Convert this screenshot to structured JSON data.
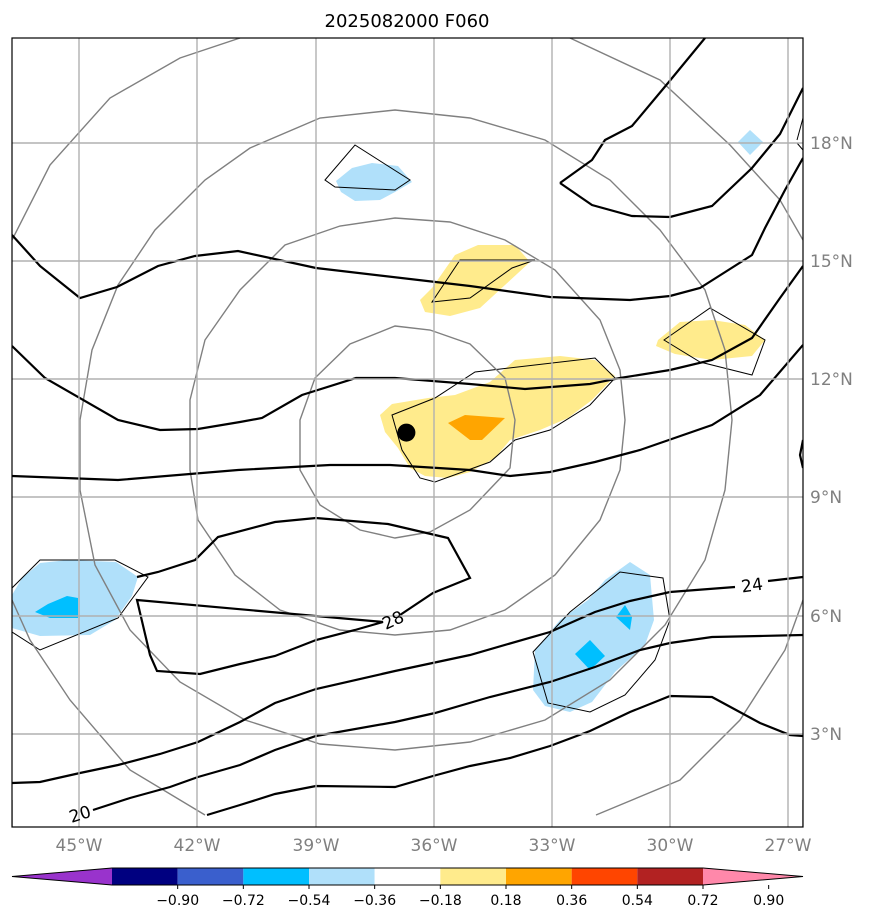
{
  "title": "2025082000 F060",
  "axes": {
    "lon_ticks": [
      "45°W",
      "42°W",
      "39°W",
      "36°W",
      "33°W",
      "30°W",
      "27°W"
    ],
    "lat_ticks": [
      "18°N",
      "15°N",
      "12°N",
      "9°N",
      "6°N",
      "3°N"
    ]
  },
  "contour_labels": {
    "c20": "20",
    "c24": "24",
    "c28": "28"
  },
  "storm_center": {
    "lon": -36.7,
    "lat": 10.65
  },
  "colorbar": {
    "ticks": [
      "−0.90",
      "−0.72",
      "−0.54",
      "−0.36",
      "−0.18",
      "0.18",
      "0.36",
      "0.54",
      "0.72",
      "0.90"
    ],
    "colors": [
      "#9933cc",
      "#000080",
      "#3a5fcd",
      "#00bfff",
      "#b0e0fa",
      "#ffffff",
      "#ffeb8c",
      "#ffa500",
      "#ff4500",
      "#b22222",
      "#ff88aa"
    ]
  }
}
